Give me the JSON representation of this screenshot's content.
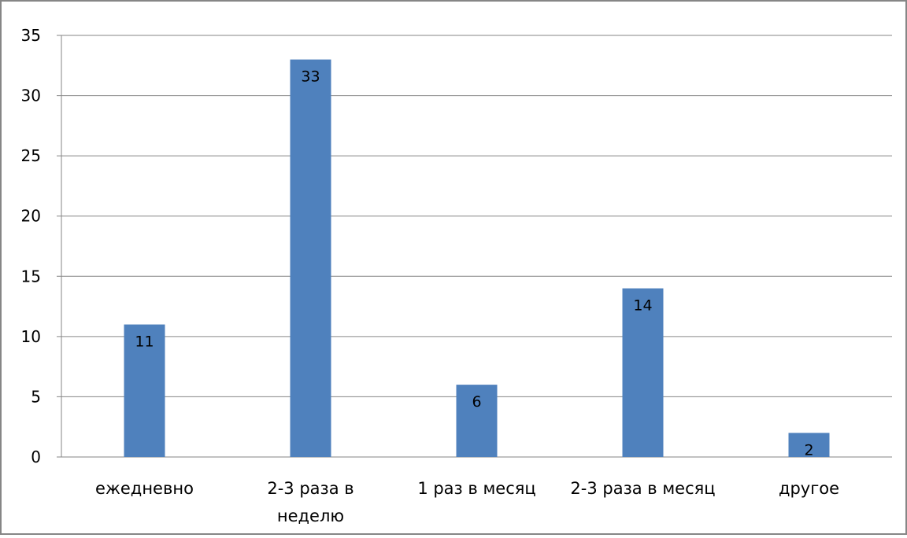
{
  "chart_data": {
    "type": "bar",
    "categories": [
      "ежедневно",
      "2-3 раза в неделю",
      "1 раз в месяц",
      "2-3 раза в месяц",
      "другое"
    ],
    "category_lines": [
      [
        "ежедневно"
      ],
      [
        "2-3 раза в",
        "неделю"
      ],
      [
        "1 раз в месяц"
      ],
      [
        "2-3 раза в месяц"
      ],
      [
        "другое"
      ]
    ],
    "values": [
      11,
      33,
      6,
      14,
      2
    ],
    "data_labels": [
      "11",
      "33",
      "6",
      "14",
      "2"
    ],
    "ylim": [
      0,
      35
    ],
    "y_ticks": [
      0,
      5,
      10,
      15,
      20,
      25,
      30,
      35
    ],
    "grid": true,
    "legend": "none",
    "colors": {
      "bar": "#4F81BD",
      "grid": "#868686",
      "frame": "#868686",
      "text": "#000000"
    }
  }
}
